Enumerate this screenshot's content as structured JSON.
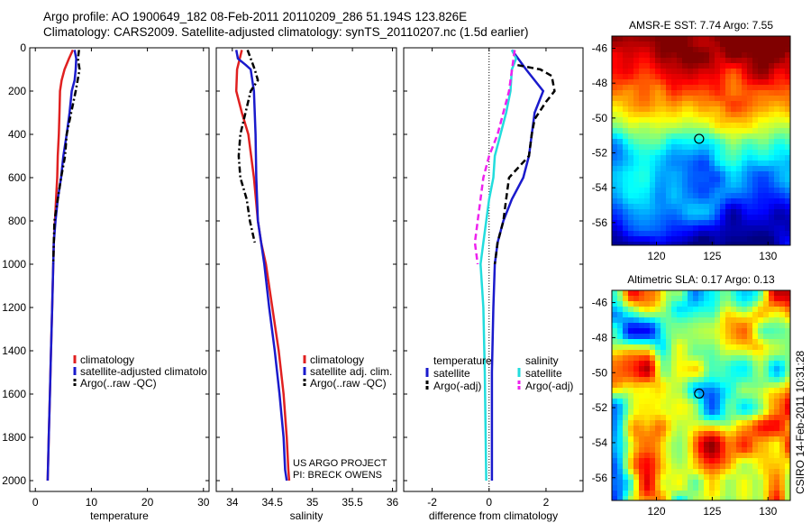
{
  "header": {
    "title_line1": "Argo profile: AO 1900649_182 08-Feb-2011 20110209_286 51.194S 123.826E",
    "title_line2": "Climatology: CARS2009. Satellite-adjusted climatology: synTS_20110207.nc (1.5d earlier)"
  },
  "project": {
    "line1": "US ARGO PROJECT",
    "line2": "PI: BRECK OWENS"
  },
  "side_stamp": "CSIRO 14-Feb-2011 10:31:28",
  "colors": {
    "climatology": "#e02020",
    "satellite": "#1a1acc",
    "argo": "#000000",
    "satellite_salinity": "#22dddd",
    "argo_salinity_diff": "#ee22ee"
  },
  "chart_data": [
    {
      "type": "line",
      "id": "temperature",
      "xlabel": "temperature",
      "ylabel": "",
      "xlim": [
        -1,
        31
      ],
      "ylim": [
        2050,
        0
      ],
      "y_reversed": true,
      "xticks": [
        0,
        10,
        20,
        30
      ],
      "yticks": [
        0,
        200,
        400,
        600,
        800,
        1000,
        1200,
        1400,
        1600,
        1800,
        2000
      ],
      "legend": [
        "climatology",
        "satellite-adjusted climatolo",
        "Argo(..raw -QC)"
      ],
      "series": [
        {
          "name": "climatology",
          "style": "solid",
          "color": "#e02020",
          "points": [
            [
              6.7,
              10
            ],
            [
              6.0,
              50
            ],
            [
              5.2,
              100
            ],
            [
              4.7,
              150
            ],
            [
              4.4,
              200
            ],
            [
              4.3,
              300
            ],
            [
              4.2,
              400
            ],
            [
              4.0,
              500
            ],
            [
              3.9,
              600
            ],
            [
              3.7,
              700
            ],
            [
              3.5,
              800
            ],
            [
              3.3,
              900
            ],
            [
              3.2,
              1000
            ],
            [
              3.0,
              1200
            ],
            [
              2.8,
              1400
            ],
            [
              2.6,
              1600
            ],
            [
              2.4,
              1800
            ],
            [
              2.2,
              2000
            ]
          ]
        },
        {
          "name": "satellite-adjusted climatolo",
          "style": "solid",
          "color": "#1a1acc",
          "points": [
            [
              7.0,
              10
            ],
            [
              7.3,
              50
            ],
            [
              7.2,
              100
            ],
            [
              7.0,
              150
            ],
            [
              6.5,
              200
            ],
            [
              6.1,
              300
            ],
            [
              5.6,
              400
            ],
            [
              5.0,
              500
            ],
            [
              4.6,
              600
            ],
            [
              4.0,
              700
            ],
            [
              3.6,
              800
            ],
            [
              3.3,
              900
            ],
            [
              3.2,
              1000
            ],
            [
              3.0,
              1200
            ],
            [
              2.8,
              1400
            ],
            [
              2.6,
              1600
            ],
            [
              2.4,
              1800
            ],
            [
              2.2,
              2000
            ]
          ]
        },
        {
          "name": "Argo(..raw -QC)",
          "style": "dashdot",
          "color": "#000000",
          "points": [
            [
              7.8,
              10
            ],
            [
              7.6,
              50
            ],
            [
              7.9,
              100
            ],
            [
              7.2,
              200
            ],
            [
              6.4,
              300
            ],
            [
              5.6,
              400
            ],
            [
              5.3,
              500
            ],
            [
              4.6,
              600
            ],
            [
              4.0,
              700
            ],
            [
              3.4,
              800
            ],
            [
              3.3,
              900
            ],
            [
              3.2,
              1000
            ]
          ]
        }
      ]
    },
    {
      "type": "line",
      "id": "salinity",
      "xlabel": "salinity",
      "ylabel": "",
      "xlim": [
        33.8,
        36.05
      ],
      "ylim": [
        2050,
        0
      ],
      "y_reversed": true,
      "xticks": [
        34,
        34.5,
        35,
        35.5,
        36
      ],
      "xtick_labels": [
        "34",
        "34.5",
        "35",
        "35.5",
        "36"
      ],
      "yticks": [
        0,
        200,
        400,
        600,
        800,
        1000,
        1200,
        1400,
        1600,
        1800,
        2000
      ],
      "legend": [
        "climatology",
        "satellite adj. clim.",
        "Argo(..raw -QC)"
      ],
      "series": [
        {
          "name": "climatology",
          "style": "solid",
          "color": "#e02020",
          "points": [
            [
              34.12,
              10
            ],
            [
              34.06,
              100
            ],
            [
              34.05,
              200
            ],
            [
              34.12,
              300
            ],
            [
              34.2,
              400
            ],
            [
              34.27,
              600
            ],
            [
              34.32,
              800
            ],
            [
              34.36,
              900
            ],
            [
              34.42,
              1000
            ],
            [
              34.5,
              1200
            ],
            [
              34.58,
              1400
            ],
            [
              34.64,
              1600
            ],
            [
              34.68,
              1800
            ],
            [
              34.7,
              1950
            ],
            [
              34.71,
              2000
            ]
          ]
        },
        {
          "name": "satellite adj. clim.",
          "style": "solid",
          "color": "#1a1acc",
          "points": [
            [
              34.05,
              10
            ],
            [
              34.07,
              50
            ],
            [
              34.17,
              80
            ],
            [
              34.23,
              100
            ],
            [
              34.27,
              200
            ],
            [
              34.29,
              400
            ],
            [
              34.3,
              600
            ],
            [
              34.32,
              800
            ],
            [
              34.36,
              900
            ],
            [
              34.4,
              1000
            ],
            [
              34.46,
              1200
            ],
            [
              34.53,
              1400
            ],
            [
              34.59,
              1600
            ],
            [
              34.64,
              1800
            ],
            [
              34.66,
              1950
            ],
            [
              34.68,
              2000
            ]
          ]
        },
        {
          "name": "Argo(..raw -QC)",
          "style": "dashdot",
          "color": "#000000",
          "points": [
            [
              34.19,
              10
            ],
            [
              34.28,
              100
            ],
            [
              34.32,
              150
            ],
            [
              34.23,
              200
            ],
            [
              34.1,
              400
            ],
            [
              34.08,
              500
            ],
            [
              34.1,
              600
            ],
            [
              34.18,
              700
            ],
            [
              34.22,
              800
            ],
            [
              34.28,
              900
            ]
          ]
        }
      ]
    },
    {
      "type": "line",
      "id": "difference",
      "xlabel": "difference from climatology",
      "ylabel": "",
      "xlim": [
        -3,
        3.3
      ],
      "ylim": [
        2050,
        0
      ],
      "y_reversed": true,
      "xticks": [
        -2,
        0,
        2
      ],
      "yticks": [
        0,
        200,
        400,
        600,
        800,
        1000,
        1200,
        1400,
        1600,
        1800,
        2000
      ],
      "legend_left_title": "temperature",
      "legend_right_title": "salinity",
      "legend_left": [
        "satellite",
        "Argo(-adj)"
      ],
      "legend_right": [
        "satellite",
        "Argo(-adj)"
      ],
      "series": [
        {
          "name": "temperature satellite",
          "style": "solid",
          "color": "#1a1acc",
          "points": [
            [
              0.8,
              10
            ],
            [
              1.3,
              100
            ],
            [
              1.6,
              150
            ],
            [
              1.9,
              200
            ],
            [
              1.6,
              300
            ],
            [
              1.5,
              400
            ],
            [
              1.4,
              500
            ],
            [
              1.2,
              600
            ],
            [
              0.8,
              700
            ],
            [
              0.5,
              800
            ],
            [
              0.3,
              900
            ],
            [
              0.2,
              1000
            ],
            [
              0.15,
              1200
            ],
            [
              0.1,
              1500
            ],
            [
              0.1,
              2000
            ]
          ]
        },
        {
          "name": "temperature Argo(-adj)",
          "style": "dashed",
          "color": "#000000",
          "points": [
            [
              1.0,
              80
            ],
            [
              1.8,
              100
            ],
            [
              2.2,
              130
            ],
            [
              2.3,
              200
            ],
            [
              2.0,
              250
            ],
            [
              1.6,
              330
            ],
            [
              1.5,
              400
            ],
            [
              1.4,
              500
            ],
            [
              0.7,
              600
            ],
            [
              0.6,
              700
            ],
            [
              0.5,
              800
            ],
            [
              0.3,
              900
            ],
            [
              0.2,
              1000
            ]
          ]
        },
        {
          "name": "salinity satellite",
          "style": "solid",
          "color": "#22dddd",
          "points": [
            [
              0.8,
              10
            ],
            [
              0.95,
              50
            ],
            [
              0.8,
              100
            ],
            [
              0.75,
              200
            ],
            [
              0.6,
              300
            ],
            [
              0.4,
              400
            ],
            [
              0.2,
              500
            ],
            [
              0.15,
              600
            ],
            [
              0.0,
              700
            ],
            [
              -0.2,
              900
            ],
            [
              -0.3,
              1000
            ],
            [
              -0.2,
              1200
            ],
            [
              -0.15,
              1500
            ],
            [
              -0.1,
              2000
            ]
          ]
        },
        {
          "name": "salinity Argo(-adj)",
          "style": "dashed",
          "color": "#ee22ee",
          "points": [
            [
              0.9,
              10
            ],
            [
              0.7,
              200
            ],
            [
              0.3,
              400
            ],
            [
              0.0,
              500
            ],
            [
              -0.2,
              600
            ],
            [
              -0.4,
              800
            ],
            [
              -0.5,
              900
            ],
            [
              -0.4,
              1000
            ]
          ]
        }
      ]
    },
    {
      "type": "heatmap",
      "id": "sst_map",
      "title": "AMSR-E SST: 7.74 Argo: 7.55",
      "xlim": [
        116,
        132
      ],
      "ylim": [
        -57.3,
        -45.3
      ],
      "xticks": [
        120,
        125,
        130
      ],
      "yticks": [
        -46,
        -48,
        -50,
        -52,
        -54,
        -56
      ],
      "marker": {
        "lon": 123.826,
        "lat": -51.194
      }
    },
    {
      "type": "heatmap",
      "id": "sla_map",
      "title": "Altimetric SLA: 0.17 Argo: 0.13",
      "xlim": [
        116,
        132
      ],
      "ylim": [
        -57.3,
        -45.3
      ],
      "xticks": [
        120,
        125,
        130
      ],
      "yticks": [
        -46,
        -48,
        -50,
        -52,
        -54,
        -56
      ],
      "marker": {
        "lon": 123.826,
        "lat": -51.194
      }
    }
  ]
}
